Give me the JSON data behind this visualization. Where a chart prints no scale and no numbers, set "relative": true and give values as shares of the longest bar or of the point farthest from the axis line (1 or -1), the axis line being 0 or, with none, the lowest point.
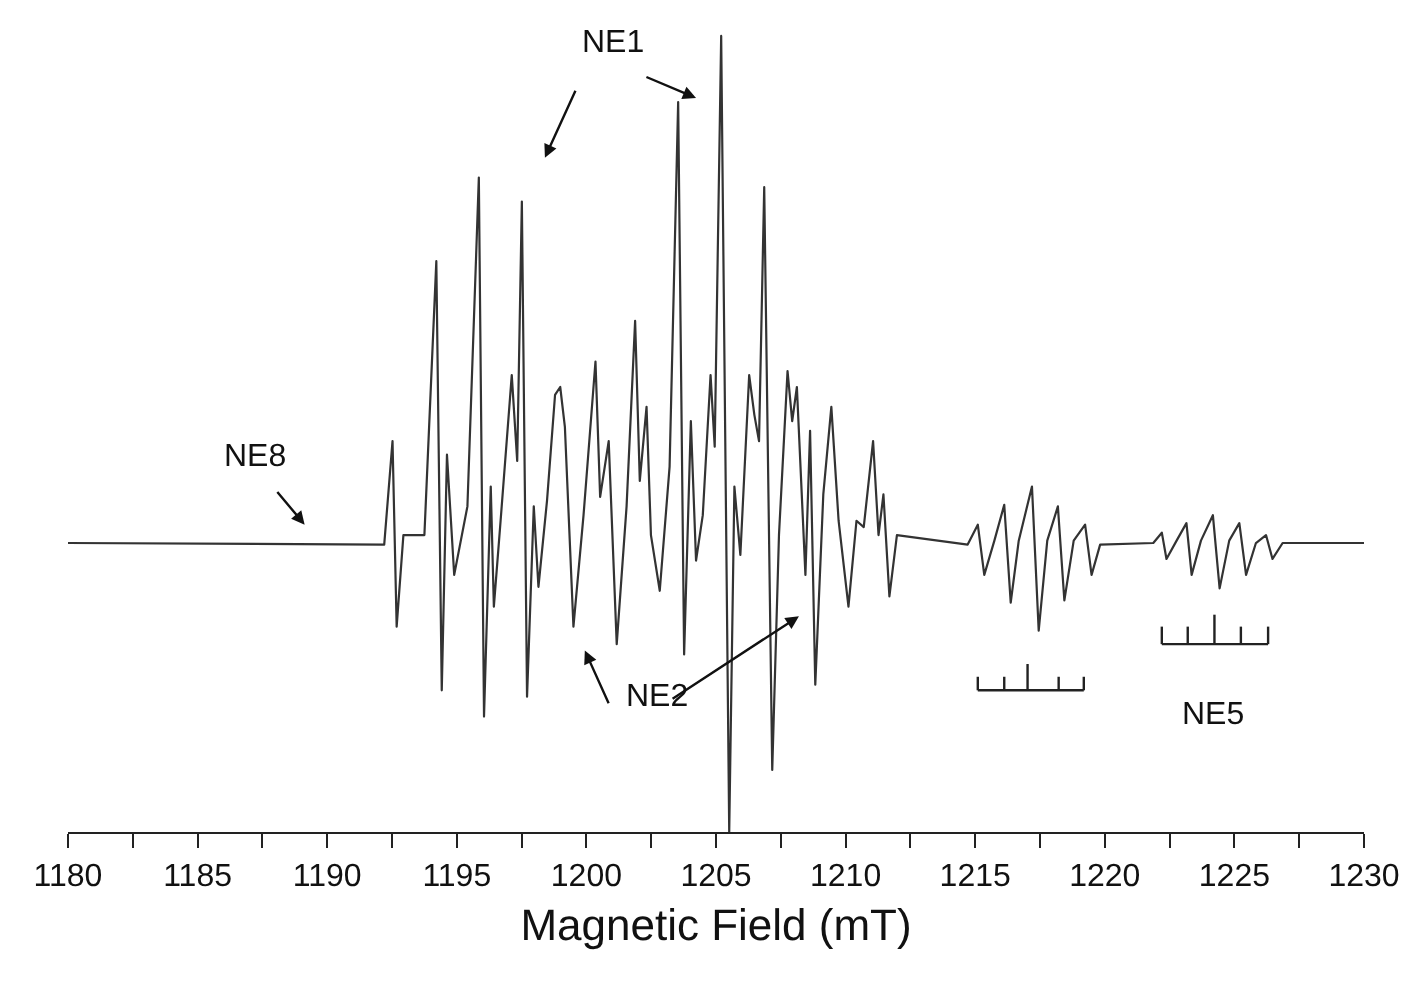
{
  "chart_data": {
    "type": "line",
    "relative": true,
    "xlabel": "Magnetic Field (mT)",
    "xlim": [
      1180,
      1230
    ],
    "xticks": [
      1180,
      {
        "value": 1182.5,
        "label": null
      },
      1185,
      {
        "value": 1187.5,
        "label": null
      },
      1190,
      {
        "value": 1192.5,
        "label": null
      },
      1195,
      {
        "value": 1197.5,
        "label": null
      },
      1200,
      {
        "value": 1202.5,
        "label": null
      },
      1205,
      {
        "value": 1207.5,
        "label": null
      },
      1210,
      {
        "value": 1212.5,
        "label": null
      },
      1215,
      {
        "value": 1217.5,
        "label": null
      },
      1220,
      {
        "value": 1222.5,
        "label": null
      },
      1225,
      {
        "value": 1227.5,
        "label": null
      },
      1230
    ],
    "annotations": [
      "NE1",
      "NE2",
      "NE8",
      "NE5"
    ],
    "marker": "none",
    "line_style": "solid",
    "series": [
      {
        "color": "#333333",
        "x": [
          1180,
          1192.2,
          1192.52,
          1192.68,
          1192.94,
          1193.75,
          1194.21,
          1194.42,
          1194.62,
          1194.9,
          1195.41,
          1195.85,
          1196.05,
          1196.31,
          1196.43,
          1196.69,
          1197.12,
          1197.33,
          1197.51,
          1197.71,
          1197.97,
          1198.15,
          1198.48,
          1198.79,
          1198.99,
          1199.17,
          1199.5,
          1199.89,
          1200.35,
          1200.53,
          1200.86,
          1201.17,
          1201.55,
          1201.88,
          1202.06,
          1202.32,
          1202.49,
          1202.83,
          1203.21,
          1203.54,
          1203.77,
          1204.03,
          1204.23,
          1204.49,
          1204.79,
          1204.95,
          1205.2,
          1205.51,
          1205.71,
          1205.94,
          1206.28,
          1206.48,
          1206.66,
          1206.86,
          1207.17,
          1207.43,
          1207.76,
          1207.94,
          1208.12,
          1208.45,
          1208.63,
          1208.83,
          1209.14,
          1209.45,
          1209.73,
          1210.11,
          1210.42,
          1210.7,
          1211.06,
          1211.27,
          1211.46,
          1211.69,
          1211.98,
          1214.71,
          1215.1,
          1215.35,
          1215.74,
          1216.12,
          1216.37,
          1216.68,
          1217.19,
          1217.45,
          1217.78,
          1218.19,
          1218.44,
          1218.8,
          1219.24,
          1219.49,
          1219.82,
          1221.87,
          1222.2,
          1222.38,
          1222.77,
          1223.15,
          1223.35,
          1223.71,
          1224.17,
          1224.43,
          1224.8,
          1225.19,
          1225.45,
          1225.83,
          1226.22,
          1226.47,
          1226.86,
          1230
        ],
        "values": [
          0.363,
          0.361,
          0.491,
          0.258,
          0.373,
          0.373,
          0.717,
          0.178,
          0.474,
          0.323,
          0.409,
          0.822,
          0.145,
          0.434,
          0.283,
          0.391,
          0.574,
          0.466,
          0.792,
          0.17,
          0.409,
          0.308,
          0.416,
          0.549,
          0.559,
          0.509,
          0.258,
          0.398,
          0.591,
          0.421,
          0.491,
          0.236,
          0.409,
          0.642,
          0.441,
          0.534,
          0.373,
          0.303,
          0.459,
          0.917,
          0.223,
          0.516,
          0.341,
          0.398,
          0.574,
          0.484,
          1.0,
          0.0,
          0.434,
          0.348,
          0.574,
          0.524,
          0.491,
          0.81,
          0.078,
          0.373,
          0.579,
          0.516,
          0.559,
          0.323,
          0.504,
          0.185,
          0.424,
          0.534,
          0.391,
          0.283,
          0.391,
          0.383,
          0.491,
          0.373,
          0.424,
          0.296,
          0.373,
          0.361,
          0.386,
          0.323,
          0.366,
          0.411,
          0.288,
          0.366,
          0.434,
          0.253,
          0.366,
          0.409,
          0.291,
          0.366,
          0.386,
          0.323,
          0.361,
          0.363,
          0.376,
          0.343,
          0.366,
          0.388,
          0.323,
          0.366,
          0.398,
          0.306,
          0.366,
          0.388,
          0.323,
          0.363,
          0.373,
          0.343,
          0.363,
          0.363
        ]
      }
    ]
  }
}
